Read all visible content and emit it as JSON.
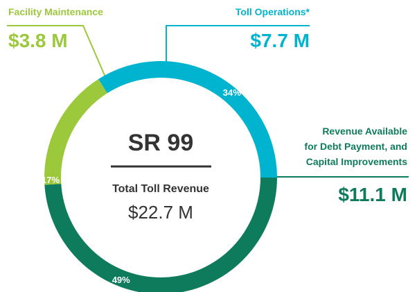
{
  "chart_data": {
    "type": "donut",
    "categories": [
      "Toll Operations*",
      "Revenue Available\nfor Debt Payment, and\nCapital Improvements",
      "Facility Maintenance"
    ],
    "values": [
      34,
      49,
      17
    ],
    "value_labels": [
      "34%",
      "49%",
      "17%"
    ],
    "amount_labels": [
      "$7.7 M",
      "$11.1 M",
      "$3.8 M"
    ],
    "colors": [
      "#00b4d0",
      "#0e7b5c",
      "#9cc83c"
    ],
    "center_title": "SR 99",
    "center_subtitle": "Total Toll Revenue",
    "center_total": "$22.7 M"
  }
}
